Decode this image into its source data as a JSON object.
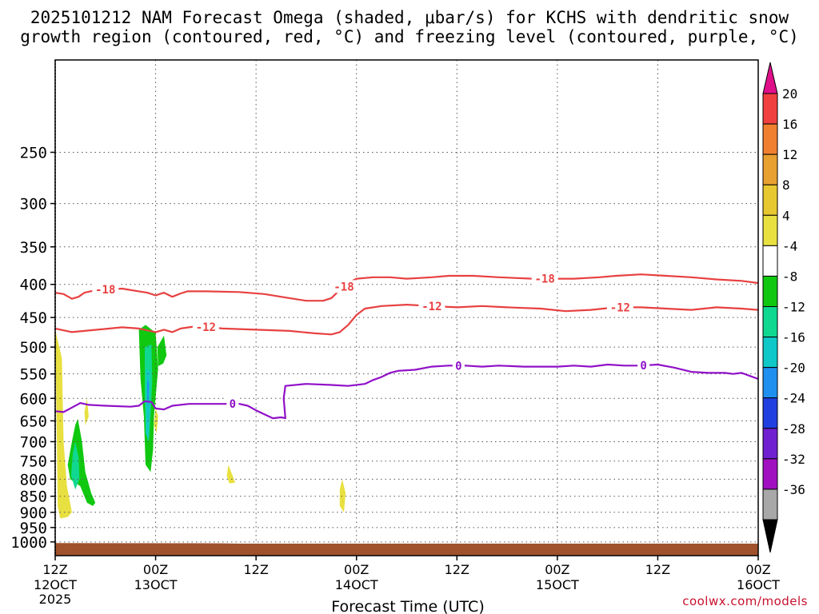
{
  "title_line1": "2025101212 NAM Forecast Omega (shaded, μbar/s) for KCHS with dendritic snow",
  "title_line2": "growth region (contoured, red, °C) and freezing level (contoured, purple, °C)",
  "credit": "coolwx.com/models",
  "chart_data": {
    "type": "area",
    "xlabel": "Forecast Time (UTC)",
    "x_ticks": [
      {
        "hour": 0,
        "top": "12Z",
        "mid": "12OCT",
        "bottom": "2025"
      },
      {
        "hour": 12,
        "top": "00Z",
        "mid": "13OCT",
        "bottom": ""
      },
      {
        "hour": 24,
        "top": "12Z",
        "mid": "",
        "bottom": ""
      },
      {
        "hour": 36,
        "top": "00Z",
        "mid": "14OCT",
        "bottom": ""
      },
      {
        "hour": 48,
        "top": "12Z",
        "mid": "",
        "bottom": ""
      },
      {
        "hour": 60,
        "top": "00Z",
        "mid": "15OCT",
        "bottom": ""
      },
      {
        "hour": 72,
        "top": "12Z",
        "mid": "",
        "bottom": ""
      },
      {
        "hour": 84,
        "top": "00Z",
        "mid": "16OCT",
        "bottom": ""
      }
    ],
    "xlim_hours": [
      0,
      84
    ],
    "y_ticks": [
      250,
      300,
      350,
      400,
      450,
      500,
      550,
      600,
      650,
      700,
      750,
      800,
      850,
      900,
      950,
      1000
    ],
    "y_scale": "log-pressure",
    "ylim_hpa": [
      1050,
      180
    ],
    "grid": true,
    "colorbar": {
      "labels": [
        "20",
        "16",
        "12",
        "8",
        "4",
        "-4",
        "-8",
        "-12",
        "-16",
        "-20",
        "-24",
        "-28",
        "-32",
        "-36"
      ],
      "top_arrow_color": "#e0108a",
      "bottom_arrow_color": "#000000",
      "bands": [
        "#f04040",
        "#f08030",
        "#e8a030",
        "#e8c830",
        "#e8e040",
        "#ffffff",
        "#10c810",
        "#10d890",
        "#10c8c8",
        "#2090f0",
        "#2040e0",
        "#7020d0",
        "#a010c0",
        "#a8a8a8"
      ]
    },
    "series": [
      {
        "name": "-18",
        "color": "#e84040",
        "points": [
          [
            0,
            412
          ],
          [
            1,
            414
          ],
          [
            2,
            421
          ],
          [
            2.8,
            418
          ],
          [
            3.5,
            412
          ],
          [
            5,
            408
          ],
          [
            8,
            406
          ],
          [
            10,
            410
          ],
          [
            11,
            412
          ],
          [
            12,
            416
          ],
          [
            13,
            412
          ],
          [
            14,
            418
          ],
          [
            15,
            413
          ],
          [
            15.8,
            410
          ],
          [
            18,
            410
          ],
          [
            22,
            411
          ],
          [
            25,
            414
          ],
          [
            28,
            420
          ],
          [
            30,
            424
          ],
          [
            32,
            424
          ],
          [
            33,
            420
          ],
          [
            34,
            408
          ],
          [
            35,
            398
          ],
          [
            36,
            392
          ],
          [
            38,
            390
          ],
          [
            40,
            390
          ],
          [
            42,
            392
          ],
          [
            45,
            390
          ],
          [
            47,
            388
          ],
          [
            50,
            388
          ],
          [
            53,
            390
          ],
          [
            57,
            392
          ],
          [
            60,
            392
          ],
          [
            62,
            392
          ],
          [
            65,
            390
          ],
          [
            67,
            388
          ],
          [
            70,
            386
          ],
          [
            73,
            388
          ],
          [
            76,
            390
          ],
          [
            79,
            393
          ],
          [
            82,
            395
          ],
          [
            84,
            398
          ]
        ],
        "labels_at": [
          6,
          34.5,
          58.5
        ]
      },
      {
        "name": "-12",
        "color": "#e84040",
        "points": [
          [
            0,
            468
          ],
          [
            2,
            474
          ],
          [
            5,
            470
          ],
          [
            8,
            466
          ],
          [
            10,
            468
          ],
          [
            12,
            474
          ],
          [
            13,
            470
          ],
          [
            14,
            474
          ],
          [
            15,
            468
          ],
          [
            17,
            464
          ],
          [
            20,
            468
          ],
          [
            24,
            470
          ],
          [
            28,
            472
          ],
          [
            31,
            476
          ],
          [
            33,
            478
          ],
          [
            34,
            474
          ],
          [
            35,
            462
          ],
          [
            36,
            446
          ],
          [
            37,
            436
          ],
          [
            39,
            432
          ],
          [
            42,
            430
          ],
          [
            45,
            432
          ],
          [
            48,
            434
          ],
          [
            51,
            432
          ],
          [
            54,
            434
          ],
          [
            58,
            436
          ],
          [
            61,
            440
          ],
          [
            64,
            438
          ],
          [
            67,
            434
          ],
          [
            70,
            434
          ],
          [
            73,
            436
          ],
          [
            76,
            438
          ],
          [
            79,
            434
          ],
          [
            82,
            436
          ],
          [
            84,
            438
          ]
        ],
        "labels_at": [
          18,
          45,
          67.5
        ]
      },
      {
        "name": "0",
        "color": "#9010c8",
        "points": [
          [
            0,
            628
          ],
          [
            1,
            630
          ],
          [
            2,
            620
          ],
          [
            3,
            610
          ],
          [
            4,
            614
          ],
          [
            6,
            616
          ],
          [
            9,
            618
          ],
          [
            10,
            616
          ],
          [
            10.7,
            606
          ],
          [
            11.5,
            608
          ],
          [
            12,
            622
          ],
          [
            13,
            624
          ],
          [
            14,
            616
          ],
          [
            16,
            612
          ],
          [
            19,
            612
          ],
          [
            21,
            612
          ],
          [
            22,
            612
          ],
          [
            23,
            616
          ],
          [
            24,
            626
          ],
          [
            25,
            635
          ],
          [
            26,
            644
          ],
          [
            27,
            642
          ],
          [
            27.5,
            644
          ],
          [
            27.3,
            600
          ],
          [
            27.5,
            574
          ],
          [
            30,
            570
          ],
          [
            33,
            572
          ],
          [
            35,
            574
          ],
          [
            37,
            570
          ],
          [
            38,
            562
          ],
          [
            39,
            556
          ],
          [
            40,
            548
          ],
          [
            41,
            544
          ],
          [
            43,
            542
          ],
          [
            45,
            536
          ],
          [
            47,
            534
          ],
          [
            49,
            534
          ],
          [
            51,
            536
          ],
          [
            53,
            534
          ],
          [
            56,
            536
          ],
          [
            60,
            536
          ],
          [
            62,
            534
          ],
          [
            64,
            536
          ],
          [
            66,
            532
          ],
          [
            68,
            534
          ],
          [
            70,
            534
          ],
          [
            72,
            532
          ],
          [
            74,
            538
          ],
          [
            76,
            546
          ],
          [
            78,
            548
          ],
          [
            80,
            548
          ],
          [
            81,
            550
          ],
          [
            82,
            548
          ],
          [
            83,
            554
          ],
          [
            84,
            560
          ]
        ],
        "labels_at": [
          21.2,
          48.2,
          70.3
        ]
      }
    ],
    "omega_regions": [
      {
        "color": "#e8e040",
        "poly": [
          [
            0,
            470
          ],
          [
            0.8,
            520
          ],
          [
            1,
            700
          ],
          [
            1.4,
            820
          ],
          [
            2,
            900
          ],
          [
            1.5,
            915
          ],
          [
            0.6,
            920
          ],
          [
            0.3,
            880
          ],
          [
            0.2,
            700
          ],
          [
            0.1,
            560
          ]
        ]
      },
      {
        "color": "#10c810",
        "poly": [
          [
            2.7,
            645
          ],
          [
            3.2,
            700
          ],
          [
            3.6,
            780
          ],
          [
            4.3,
            840
          ],
          [
            4.8,
            870
          ],
          [
            4.5,
            880
          ],
          [
            3.8,
            870
          ],
          [
            3,
            820
          ],
          [
            1.8,
            800
          ],
          [
            1.5,
            760
          ],
          [
            2,
            700
          ],
          [
            2.4,
            660
          ]
        ]
      },
      {
        "color": "#10d890",
        "poly": [
          [
            2.4,
            700
          ],
          [
            2.8,
            740
          ],
          [
            2.9,
            800
          ],
          [
            2.4,
            830
          ],
          [
            1.9,
            790
          ],
          [
            2.1,
            730
          ]
        ]
      },
      {
        "color": "#e8e040",
        "poly": [
          [
            3.8,
            600
          ],
          [
            4,
            640
          ],
          [
            3.6,
            660
          ],
          [
            3.5,
            630
          ]
        ]
      },
      {
        "color": "#10c810",
        "poly": [
          [
            10,
            470
          ],
          [
            10.8,
            462
          ],
          [
            12,
            475
          ],
          [
            12.3,
            540
          ],
          [
            11.8,
            640
          ],
          [
            11.7,
            720
          ],
          [
            11.4,
            780
          ],
          [
            10.8,
            760
          ],
          [
            10.6,
            640
          ],
          [
            10.2,
            560
          ]
        ]
      },
      {
        "color": "#10c810",
        "poly": [
          [
            12.2,
            500
          ],
          [
            13,
            480
          ],
          [
            13.3,
            515
          ],
          [
            12.9,
            530
          ],
          [
            12.3,
            535
          ]
        ]
      },
      {
        "color": "#10d890",
        "poly": [
          [
            10.7,
            500
          ],
          [
            11.5,
            495
          ],
          [
            11.6,
            560
          ],
          [
            11.4,
            640
          ],
          [
            11.2,
            700
          ],
          [
            10.8,
            680
          ],
          [
            10.7,
            600
          ]
        ]
      },
      {
        "color": "#10c8c8",
        "poly": [
          [
            10.9,
            540
          ],
          [
            11.3,
            545
          ],
          [
            11.3,
            620
          ],
          [
            11.1,
            700
          ],
          [
            10.9,
            680
          ],
          [
            10.9,
            620
          ]
        ]
      },
      {
        "color": "#2090f0",
        "poly": [
          [
            11,
            560
          ],
          [
            11.2,
            570
          ],
          [
            11.1,
            620
          ],
          [
            11,
            600
          ]
        ]
      },
      {
        "color": "#e8e040",
        "poly": [
          [
            12,
            620
          ],
          [
            12.3,
            640
          ],
          [
            12.1,
            680
          ],
          [
            11.8,
            660
          ]
        ]
      },
      {
        "color": "#e8e040",
        "poly": [
          [
            20.7,
            760
          ],
          [
            21.2,
            790
          ],
          [
            21.5,
            810
          ],
          [
            20.8,
            812
          ],
          [
            20.5,
            790
          ]
        ]
      },
      {
        "color": "#e8e040",
        "poly": [
          [
            34.3,
            800
          ],
          [
            34.7,
            840
          ],
          [
            34.5,
            900
          ],
          [
            34,
            880
          ],
          [
            34,
            830
          ]
        ]
      }
    ],
    "terrain_color": "#a0522d"
  }
}
